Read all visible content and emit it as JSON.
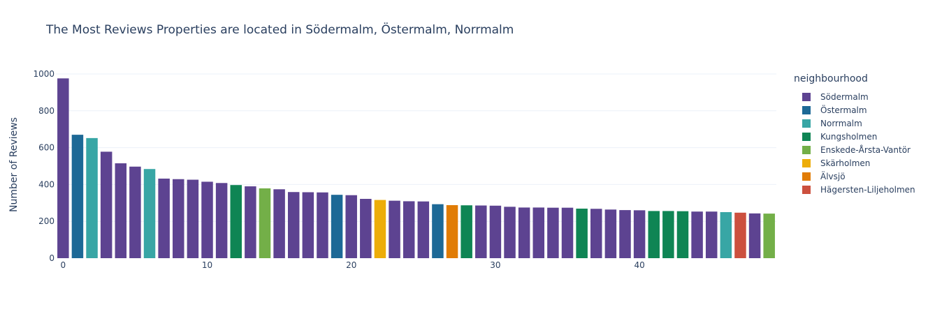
{
  "chart_data": {
    "type": "bar",
    "title": "The Most Reviews Properties are located in Södermalm, Östermalm, Norrmalm",
    "xlabel": "",
    "ylabel": "Number of Reviews",
    "ylim": [
      0,
      1000
    ],
    "xlim": [
      -0.5,
      49.5
    ],
    "yticks": [
      0,
      200,
      400,
      600,
      800,
      1000
    ],
    "xticks": [
      0,
      10,
      20,
      30,
      40
    ],
    "grid": true,
    "legend_title": "neighbourhood",
    "legend_position": "right",
    "series": [
      {
        "name": "Södermalm",
        "color": "#5D4391"
      },
      {
        "name": "Östermalm",
        "color": "#1D6996"
      },
      {
        "name": "Norrmalm",
        "color": "#38A6A5"
      },
      {
        "name": "Kungsholmen",
        "color": "#0F8554"
      },
      {
        "name": "Enskede-Årsta-Vantör",
        "color": "#73AF48"
      },
      {
        "name": "Skärholmen",
        "color": "#EDAD08"
      },
      {
        "name": "Älvsjö",
        "color": "#E17C05"
      },
      {
        "name": "Hägersten-Liljeholmen",
        "color": "#CC503E"
      }
    ],
    "x": [
      0,
      1,
      2,
      3,
      4,
      5,
      6,
      7,
      8,
      9,
      10,
      11,
      12,
      13,
      14,
      15,
      16,
      17,
      18,
      19,
      20,
      21,
      22,
      23,
      24,
      25,
      26,
      27,
      28,
      29,
      30,
      31,
      32,
      33,
      34,
      35,
      36,
      37,
      38,
      39,
      40,
      41,
      42,
      43,
      44,
      45,
      46,
      47,
      48,
      49
    ],
    "values": [
      976,
      670,
      652,
      578,
      515,
      497,
      484,
      432,
      429,
      426,
      415,
      408,
      397,
      390,
      379,
      374,
      359,
      358,
      357,
      344,
      342,
      322,
      316,
      312,
      309,
      308,
      293,
      288,
      287,
      286,
      285,
      279,
      275,
      275,
      274,
      274,
      269,
      268,
      264,
      261,
      260,
      256,
      256,
      255,
      253,
      253,
      250,
      247,
      243,
      242
    ],
    "groups": [
      "Södermalm",
      "Östermalm",
      "Norrmalm",
      "Södermalm",
      "Södermalm",
      "Södermalm",
      "Norrmalm",
      "Södermalm",
      "Södermalm",
      "Södermalm",
      "Södermalm",
      "Södermalm",
      "Kungsholmen",
      "Södermalm",
      "Enskede-Årsta-Vantör",
      "Södermalm",
      "Södermalm",
      "Södermalm",
      "Södermalm",
      "Östermalm",
      "Södermalm",
      "Södermalm",
      "Skärholmen",
      "Södermalm",
      "Södermalm",
      "Södermalm",
      "Östermalm",
      "Älvsjö",
      "Kungsholmen",
      "Södermalm",
      "Södermalm",
      "Södermalm",
      "Södermalm",
      "Södermalm",
      "Södermalm",
      "Södermalm",
      "Kungsholmen",
      "Södermalm",
      "Södermalm",
      "Södermalm",
      "Södermalm",
      "Kungsholmen",
      "Kungsholmen",
      "Kungsholmen",
      "Södermalm",
      "Södermalm",
      "Norrmalm",
      "Hägersten-Liljeholmen",
      "Södermalm",
      "Enskede-Årsta-Vantör"
    ]
  }
}
